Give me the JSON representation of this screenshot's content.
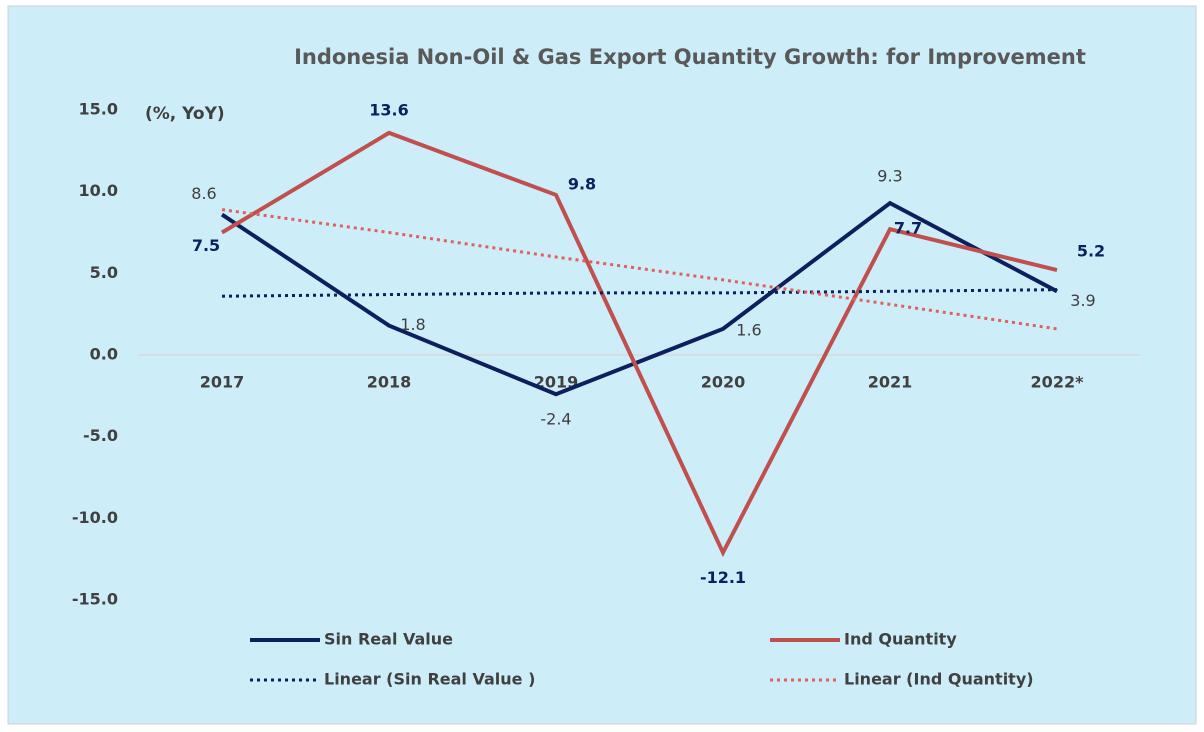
{
  "chart_data": {
    "type": "line",
    "title": "Indonesia Non-Oil & Gas Export Quantity Growth: for Improvement",
    "y_axis_label": "(%, YoY)",
    "categories": [
      "2017",
      "2018",
      "2019",
      "2020",
      "2021",
      "2022*"
    ],
    "series": [
      {
        "name": "Sin Real Value",
        "color": "#0d1f5c",
        "line_style": "solid",
        "values": [
          8.6,
          1.8,
          -2.4,
          1.6,
          9.3,
          3.9
        ]
      },
      {
        "name": "Ind Quantity",
        "color": "#c0504d",
        "line_style": "solid",
        "values": [
          7.5,
          13.6,
          9.8,
          -12.1,
          7.7,
          5.2
        ]
      },
      {
        "name": "Linear (Sin Real Value )",
        "color": "#0d1f5c",
        "line_style": "dotted",
        "values": [
          3.6,
          3.7,
          3.8,
          3.8,
          3.9,
          4.0
        ]
      },
      {
        "name": "Linear (Ind Quantity)",
        "color": "#e0605c",
        "line_style": "dotted",
        "values": [
          8.9,
          7.5,
          6.0,
          4.6,
          3.1,
          1.6
        ]
      }
    ],
    "ylim": [
      -15,
      15
    ],
    "yticks": [
      {
        "value": -15,
        "label": "-15.0"
      },
      {
        "value": -10,
        "label": "-10.0"
      },
      {
        "value": -5,
        "label": "-5.0"
      },
      {
        "value": 0,
        "label": "0.0"
      },
      {
        "value": 5,
        "label": "5.0"
      },
      {
        "value": 10,
        "label": "10.0"
      },
      {
        "value": 15,
        "label": "15.0"
      }
    ],
    "legend": "bottom"
  }
}
